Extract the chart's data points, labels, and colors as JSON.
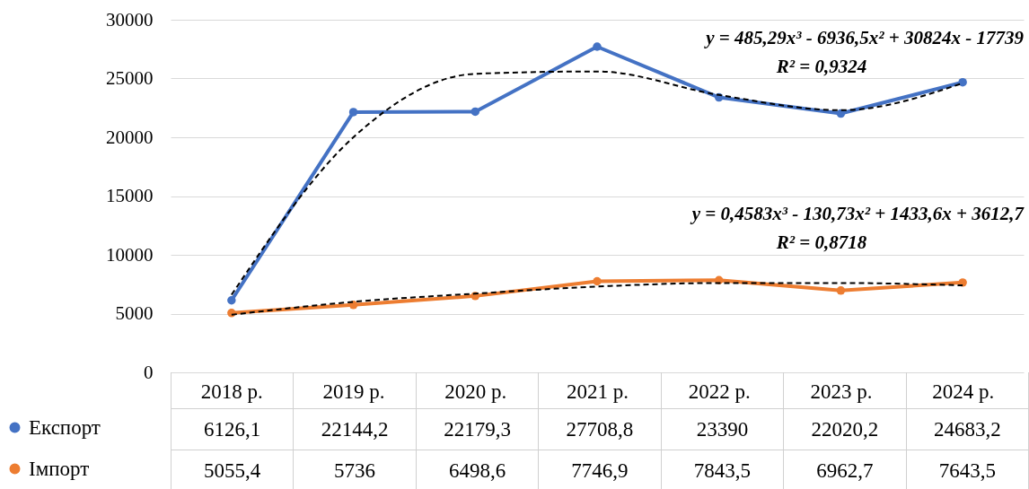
{
  "chart_data": {
    "type": "line",
    "categories": [
      "2018 р.",
      "2019 р.",
      "2020 р.",
      "2021 р.",
      "2022 р.",
      "2023 р.",
      "2024 р."
    ],
    "ylim": [
      0,
      30000
    ],
    "yticks": [
      0,
      5000,
      10000,
      15000,
      20000,
      25000,
      30000
    ],
    "grid": "y",
    "legend": "bottom left",
    "marker": "circle",
    "line_style": "solid",
    "series": [
      {
        "name": "Експорт",
        "color": "#4472c4",
        "values": [
          6126.1,
          22144.2,
          22179.3,
          27708.8,
          23390,
          22020.2,
          24683.2
        ],
        "value_labels": [
          "6126,1",
          "22144,2",
          "22179,3",
          "27708,8",
          "23390",
          "22020,2",
          "24683,2"
        ]
      },
      {
        "name": "Імпорт",
        "color": "#ed7d31",
        "values": [
          5055.4,
          5736,
          6498.6,
          7746.9,
          7843.5,
          6962.7,
          7643.5
        ],
        "value_labels": [
          "5055,4",
          "5736",
          "6498,6",
          "7746,9",
          "7843,5",
          "6962,7",
          "7643,5"
        ]
      },
      {
        "type": "line",
        "color": "#000000",
        "line_style": "dashed",
        "marker": "none",
        "x": [
          "2018 р.",
          "2019 р.",
          "2020 р.",
          "2021 р.",
          "2022 р.",
          "2023 р.",
          "2024 р."
        ],
        "values": [
          6600,
          20000,
          25400,
          25600,
          23600,
          22300,
          24600
        ]
      },
      {
        "type": "line",
        "color": "#000000",
        "line_style": "dashed",
        "marker": "none",
        "x": [
          "2018 р.",
          "2019 р.",
          "2020 р.",
          "2021 р.",
          "2022 р.",
          "2023 р.",
          "2024 р."
        ],
        "values": [
          4900,
          6000,
          6700,
          7300,
          7600,
          7600,
          7400
        ]
      }
    ],
    "annotations": [
      "y = 485,29x³ - 6936,5x² + 30824x - 17739",
      "R² = 0,9324",
      "y = 0,4583x³ - 130,73x² + 1433,6x + 3612,7",
      "R² = 0,8718"
    ]
  }
}
